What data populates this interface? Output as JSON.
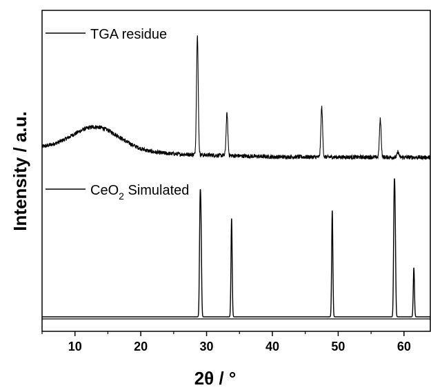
{
  "chart_data": {
    "type": "line",
    "xlabel": "2θ / °",
    "ylabel": "Intensity / a.u.",
    "xlim": [
      5,
      64
    ],
    "x_ticks": [
      10,
      20,
      30,
      40,
      50,
      60
    ],
    "y_ticks_shown": false,
    "grid": false,
    "legend_placement": "inline-left",
    "series": [
      {
        "name": "TGA residue",
        "color": "#000000",
        "baseline": 0.86,
        "noise": 0.08,
        "background_hump": {
          "center": 13.2,
          "width": 3.6,
          "height": 0.9
        },
        "sloping_background": [
          [
            5,
            0.35
          ],
          [
            26,
            0.12
          ],
          [
            40,
            0.02
          ],
          [
            64,
            0.0
          ]
        ],
        "peaks": [
          {
            "x": 28.6,
            "height": 4.55
          },
          {
            "x": 33.1,
            "height": 1.6
          },
          {
            "x": 47.5,
            "height": 1.9
          },
          {
            "x": 56.4,
            "height": 1.45
          },
          {
            "x": 59.1,
            "height": 0.2
          }
        ]
      },
      {
        "name": "CeO2 Simulated",
        "color": "#000000",
        "baseline": 0.0,
        "peaks": [
          {
            "x": 29.0,
            "height": 3.65
          },
          {
            "x": 29.15,
            "height": 3.1
          },
          {
            "x": 33.8,
            "height": 3.7
          },
          {
            "x": 49.1,
            "height": 4.0
          },
          {
            "x": 58.5,
            "height": 4.0
          },
          {
            "x": 58.65,
            "height": 3.3
          },
          {
            "x": 61.5,
            "height": 1.85
          }
        ]
      }
    ]
  },
  "legend": {
    "tga_label": "TGA residue",
    "ceo2_prefix": "CeO",
    "ceo2_subscript": "2",
    "ceo2_suffix": " Simulated"
  }
}
